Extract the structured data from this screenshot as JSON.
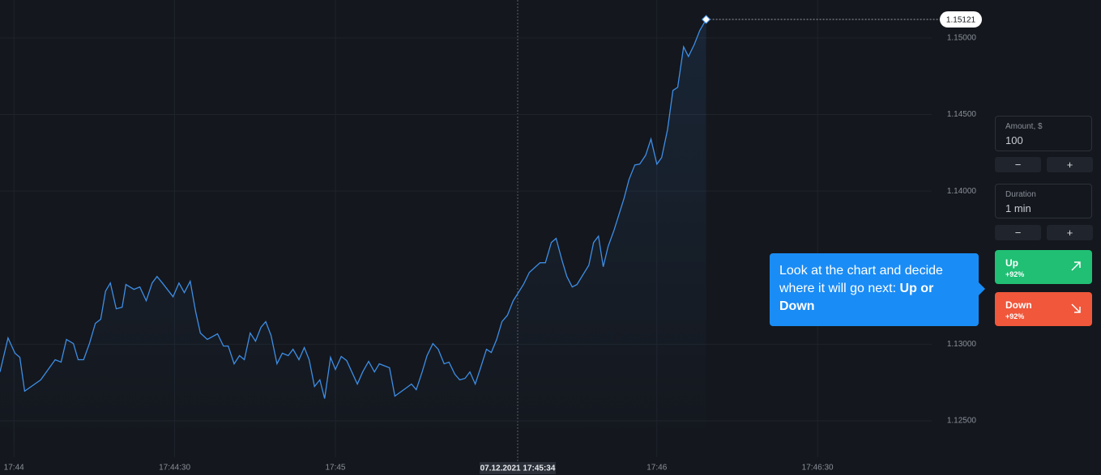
{
  "chart_data": {
    "type": "line",
    "color": "#3d8ee6",
    "x": [
      -2.6,
      -1.1,
      0.2,
      1.1,
      2.0,
      5.0,
      7.7,
      8.8,
      9.8,
      11.1,
      12.0,
      13.0,
      14.1,
      15.2,
      16.2,
      17.1,
      18.0,
      19.1,
      20.2,
      20.9,
      22.4,
      23.5,
      24.7,
      25.8,
      26.7,
      27.7,
      29.7,
      30.8,
      31.8,
      32.9,
      33.9,
      34.8,
      36.1,
      38.0,
      39.1,
      40.0,
      41.1,
      42.1,
      43.0,
      44.1,
      45.1,
      46.1,
      47.0,
      48.0,
      49.1,
      50.1,
      51.2,
      52.1,
      53.2,
      54.2,
      55.1,
      56.1,
      57.1,
      58.0,
      59.1,
      60.0,
      61.1,
      62.1,
      64.1,
      65.1,
      66.2,
      67.3,
      68.2,
      70.1,
      71.1,
      73.2,
      74.2,
      75.1,
      76.2,
      77.1,
      78.2,
      79.2,
      80.3,
      81.2,
      82.3,
      83.2,
      84.2,
      85.1,
      86.1,
      87.1,
      88.2,
      89.1,
      90.1,
      91.1,
      92.1,
      93.2,
      95.1,
      96.2,
      98.2,
      99.2,
      100.3,
      101.2,
      102.3,
      103.2,
      104.2,
      105.1,
      107.3,
      108.2,
      109.1,
      110.0,
      110.9,
      112.0,
      113.9,
      114.8,
      115.9,
      116.8,
      117.9,
      118.9,
      120.0,
      120.9,
      122.0,
      123.0,
      123.9,
      125.0,
      125.9,
      127.0,
      128.0,
      129.2
    ],
    "values": [
      1.12819,
      1.13041,
      1.12941,
      1.12914,
      1.12693,
      1.12767,
      1.12899,
      1.12883,
      1.13031,
      1.13004,
      1.12899,
      1.12899,
      1.13004,
      1.13136,
      1.13163,
      1.13347,
      1.134,
      1.13231,
      1.13242,
      1.1339,
      1.13358,
      1.13374,
      1.13284,
      1.134,
      1.13442,
      1.134,
      1.1331,
      1.134,
      1.13337,
      1.13411,
      1.13215,
      1.13073,
      1.13031,
      1.13068,
      1.12988,
      1.12988,
      1.12872,
      1.12925,
      1.12899,
      1.13073,
      1.1302,
      1.1311,
      1.13147,
      1.13057,
      1.12872,
      1.12941,
      1.12925,
      1.12967,
      1.12899,
      1.12978,
      1.12899,
      1.12724,
      1.12767,
      1.12645,
      1.12914,
      1.12835,
      1.1292,
      1.12893,
      1.1274,
      1.12819,
      1.12888,
      1.12819,
      1.12872,
      1.12846,
      1.12661,
      1.12714,
      1.1274,
      1.12703,
      1.12819,
      1.12925,
      1.13004,
      1.12967,
      1.12872,
      1.12883,
      1.12804,
      1.12767,
      1.12777,
      1.12819,
      1.1274,
      1.12846,
      1.12967,
      1.12946,
      1.13031,
      1.13147,
      1.13189,
      1.13284,
      1.1339,
      1.13469,
      1.13532,
      1.13532,
      1.13664,
      1.13691,
      1.13548,
      1.13442,
      1.13374,
      1.1339,
      1.13516,
      1.13664,
      1.13706,
      1.13506,
      1.13638,
      1.13743,
      1.13955,
      1.14076,
      1.14171,
      1.14176,
      1.14234,
      1.1434,
      1.14176,
      1.14219,
      1.14403,
      1.14657,
      1.14678,
      1.14942,
      1.14879,
      1.14958,
      1.15048,
      1.15121
    ],
    "xlim": [
      -2.6,
      171.3
    ],
    "ylim": [
      1.12262,
      1.15248
    ],
    "xticks": [
      {
        "value": 0,
        "label": "17:44"
      },
      {
        "value": 30,
        "label": "17:44:30"
      },
      {
        "value": 60,
        "label": "17:45"
      },
      {
        "value": 120,
        "label": "17:46"
      },
      {
        "value": 150,
        "label": "17:46:30"
      }
    ],
    "yticks": [
      {
        "value": 1.125,
        "label": "1.12500"
      },
      {
        "value": 1.13,
        "label": "1.13000"
      },
      {
        "value": 1.14,
        "label": "1.14000"
      },
      {
        "value": 1.145,
        "label": "1.14500"
      },
      {
        "value": 1.15,
        "label": "1.15000"
      }
    ],
    "grid": true,
    "crosshair_label": "07.12.2021 17:45:34"
  },
  "panel": {
    "amount": {
      "label": "Amount, $",
      "value": "100"
    },
    "duration": {
      "label": "Duration",
      "value": "1 min"
    },
    "minus": "−",
    "plus": "+",
    "up": {
      "label": "Up",
      "payout": "+92%"
    },
    "down": {
      "label": "Down",
      "payout": "+92%"
    }
  },
  "tooltip": {
    "text": "Look at the chart and decide where it will go next:",
    "emphasis": "Up or Down"
  }
}
